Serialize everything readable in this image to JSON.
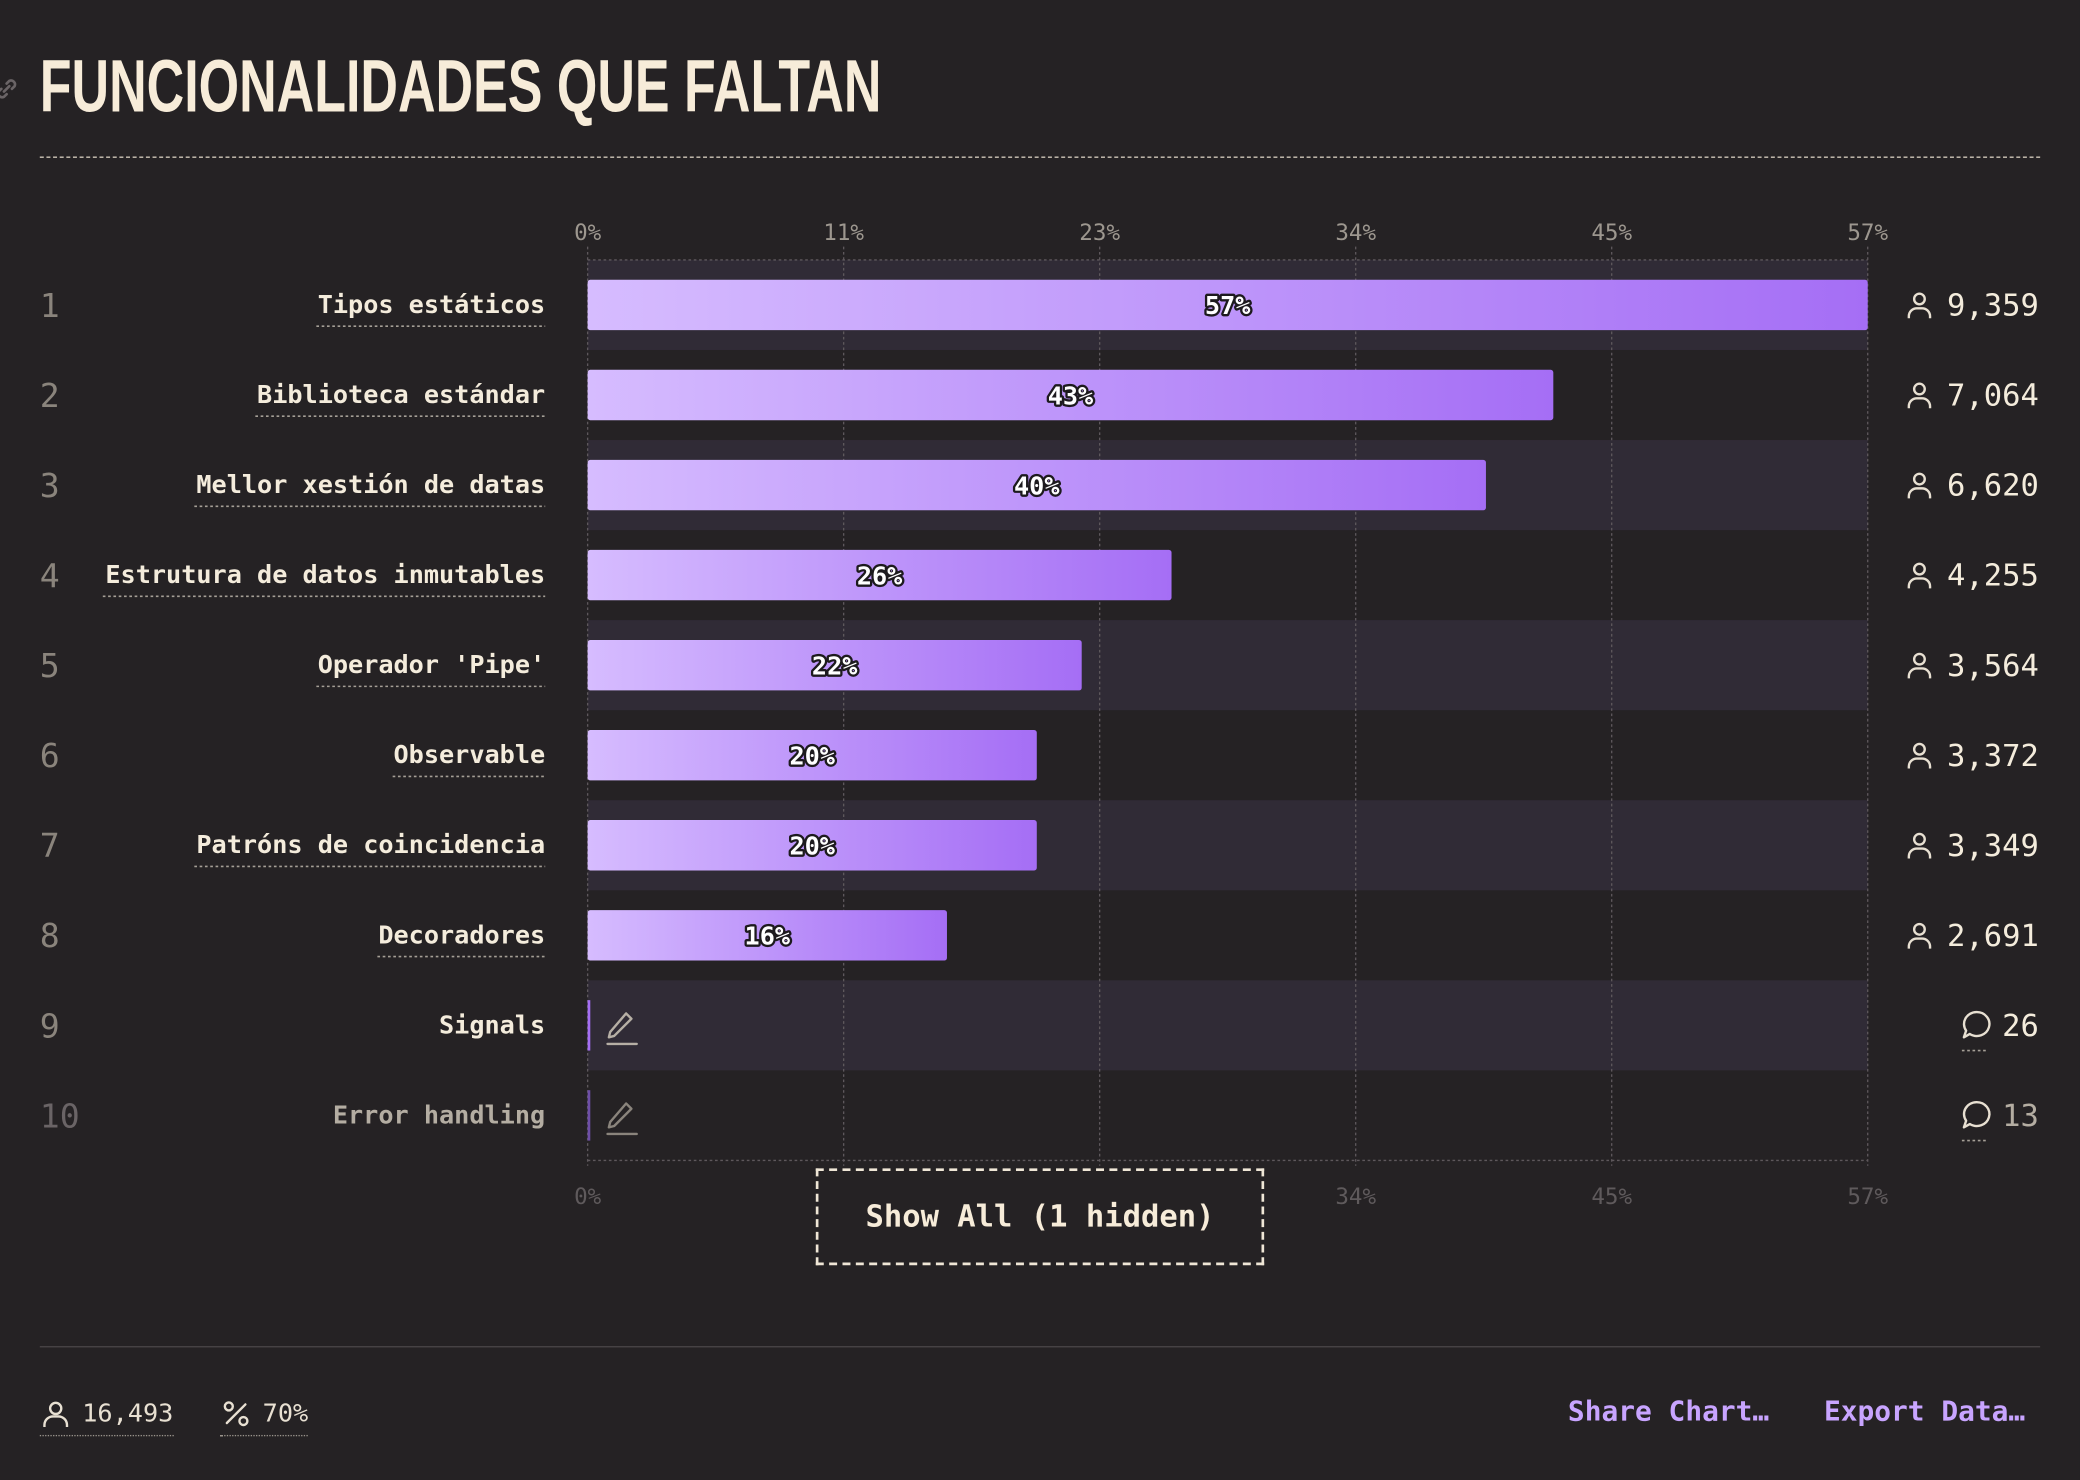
{
  "title": "FUNCIONALIDADES QUE FALTAN",
  "show_all_label": "Show All (1 hidden)",
  "footer": {
    "respondents": "16,493",
    "percentage": "70%",
    "share_label": "Share Chart…",
    "export_label": "Export Data…"
  },
  "colors": {
    "background": "#252224",
    "bar_start": "#d6bcff",
    "bar_end": "#a56ef5",
    "text": "#f4ecdc",
    "accent": "#c8a4ff"
  },
  "chart_data": {
    "type": "bar",
    "orientation": "horizontal",
    "xlim": [
      0,
      57
    ],
    "ticks": [
      "0%",
      "11%",
      "23%",
      "34%",
      "45%",
      "57%"
    ],
    "tick_values": [
      0,
      11.4,
      22.8,
      34.2,
      45.6,
      57
    ],
    "rows": [
      {
        "rank": "1",
        "label": "Tipos estáticos",
        "value": 57,
        "value_label": "57%",
        "count": "9,359",
        "count_icon": "person-icon"
      },
      {
        "rank": "2",
        "label": "Biblioteca estándar",
        "value": 43,
        "value_label": "43%",
        "count": "7,064",
        "count_icon": "person-icon"
      },
      {
        "rank": "3",
        "label": "Mellor xestión de datas",
        "value": 40,
        "value_label": "40%",
        "count": "6,620",
        "count_icon": "person-icon"
      },
      {
        "rank": "4",
        "label": "Estrutura de datos inmutables",
        "value": 26,
        "value_label": "26%",
        "count": "4,255",
        "count_icon": "person-icon"
      },
      {
        "rank": "5",
        "label": "Operador 'Pipe'",
        "value": 22,
        "value_label": "22%",
        "count": "3,564",
        "count_icon": "person-icon"
      },
      {
        "rank": "6",
        "label": "Observable",
        "value": 20,
        "value_label": "20%",
        "count": "3,372",
        "count_icon": "person-icon"
      },
      {
        "rank": "7",
        "label": "Patróns de coincidencia",
        "value": 20,
        "value_label": "20%",
        "count": "3,349",
        "count_icon": "person-icon"
      },
      {
        "rank": "8",
        "label": "Decoradores",
        "value": 16,
        "value_label": "16%",
        "count": "2,691",
        "count_icon": "person-icon"
      },
      {
        "rank": "9",
        "label": "Signals",
        "value": 0.16,
        "value_label": "",
        "count": "26",
        "count_icon": "comment-icon",
        "freeform": true
      },
      {
        "rank": "10",
        "label": "Error handling",
        "value": 0.08,
        "value_label": "",
        "count": "13",
        "count_icon": "comment-icon",
        "freeform": true,
        "muted": true
      }
    ]
  }
}
